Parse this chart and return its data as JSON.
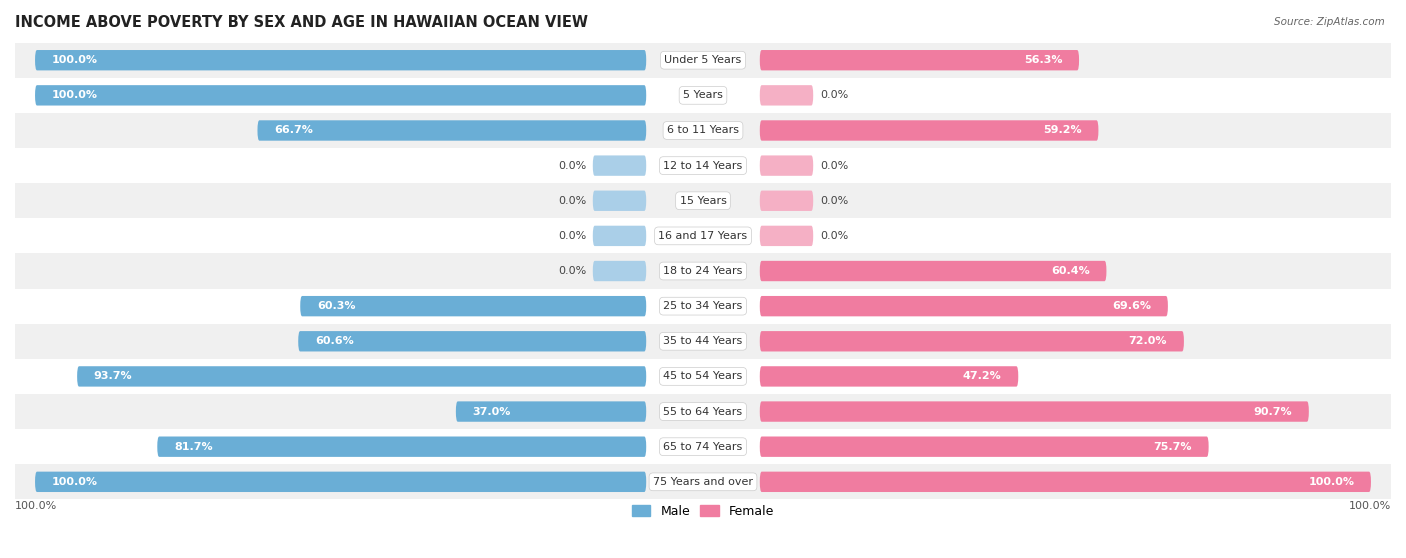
{
  "title": "INCOME ABOVE POVERTY BY SEX AND AGE IN HAWAIIAN OCEAN VIEW",
  "source": "Source: ZipAtlas.com",
  "categories": [
    "Under 5 Years",
    "5 Years",
    "6 to 11 Years",
    "12 to 14 Years",
    "15 Years",
    "16 and 17 Years",
    "18 to 24 Years",
    "25 to 34 Years",
    "35 to 44 Years",
    "45 to 54 Years",
    "55 to 64 Years",
    "65 to 74 Years",
    "75 Years and over"
  ],
  "male_values": [
    100.0,
    100.0,
    66.7,
    0.0,
    0.0,
    0.0,
    0.0,
    60.3,
    60.6,
    93.7,
    37.0,
    81.7,
    100.0
  ],
  "female_values": [
    56.3,
    0.0,
    59.2,
    0.0,
    0.0,
    0.0,
    60.4,
    69.6,
    72.0,
    47.2,
    90.7,
    75.7,
    100.0
  ],
  "male_color": "#6aaed6",
  "female_color": "#f07ca0",
  "male_color_stub": "#aacfe8",
  "female_color_stub": "#f5b0c5",
  "bg_row_alt": "#f0f0f0",
  "bg_row_main": "#ffffff",
  "max_val": 100.0,
  "title_fontsize": 10.5,
  "label_fontsize": 8.0,
  "cat_fontsize": 8.0,
  "bar_height": 0.58,
  "stub_size": 8.0,
  "axis_label": "100.0%"
}
